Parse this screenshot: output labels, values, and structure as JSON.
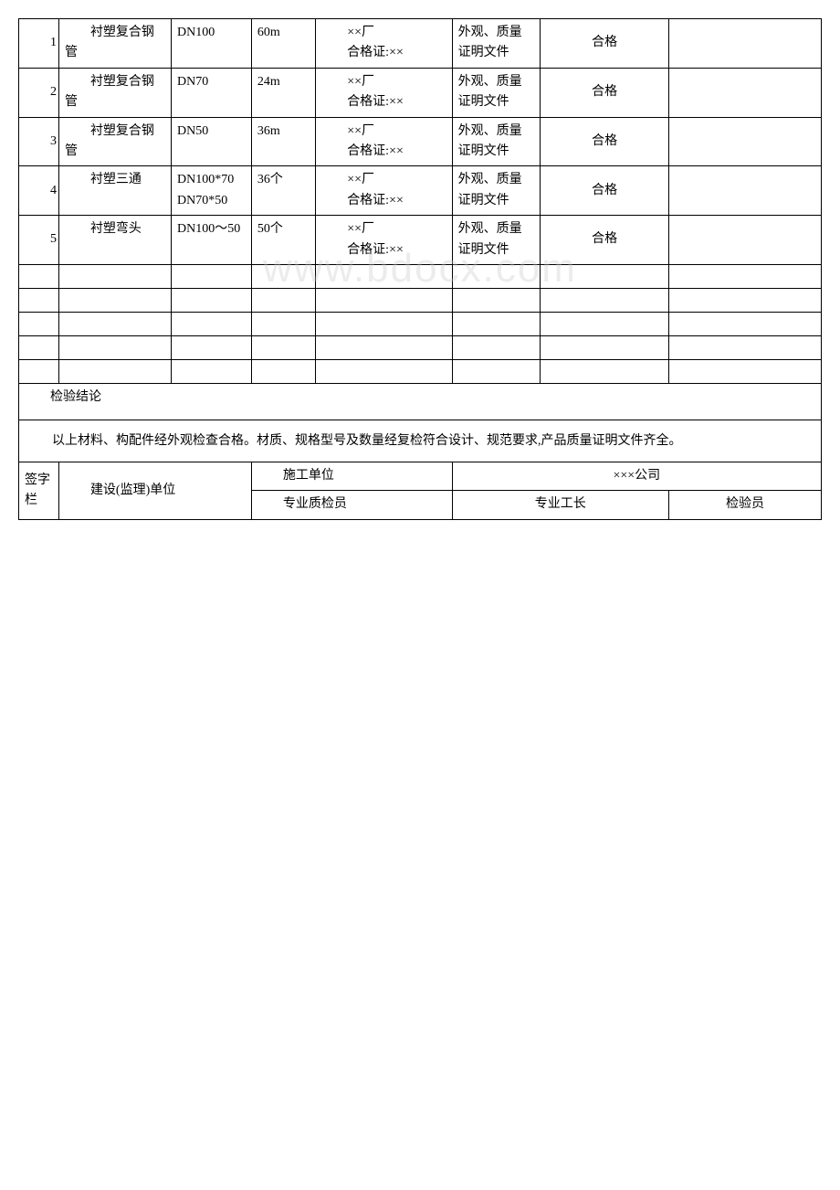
{
  "rows": [
    {
      "num": "1",
      "name": "衬塑复合钢管",
      "spec": "DN100",
      "qty": "60m",
      "mfg_line1": "××厂",
      "mfg_line2": "合格证:××",
      "check": "外观、质量证明文件",
      "result": "合格"
    },
    {
      "num": "2",
      "name": "衬塑复合钢管",
      "spec": "DN70",
      "qty": "24m",
      "mfg_line1": "××厂",
      "mfg_line2": "合格证:××",
      "check": "外观、质量证明文件",
      "result": "合格"
    },
    {
      "num": "3",
      "name": "衬塑复合钢管",
      "spec": "DN50",
      "qty": "36m",
      "mfg_line1": "××厂",
      "mfg_line2": "合格证:××",
      "check": "外观、质量证明文件",
      "result": "合格"
    },
    {
      "num": "4",
      "name": "衬塑三通",
      "spec": "DN100*70\nDN70*50",
      "qty": "36个",
      "mfg_line1": "××厂",
      "mfg_line2": "合格证:××",
      "check": "外观、质量证明文件",
      "result": "合格"
    },
    {
      "num": "5",
      "name": "衬塑弯头",
      "spec": "DN100～50",
      "qty": "50个",
      "mfg_line1": "××厂",
      "mfg_line2": "合格证:××",
      "check": "外观、质量证明文件",
      "result": "合格"
    }
  ],
  "conclusion_label": "检验结论",
  "conclusion_text": "以上材料、构配件经外观检查合格。材质、规格型号及数量经复检符合设计、规范要求,产品质量证明文件齐全。",
  "sig": {
    "col_label": "签字栏",
    "supervisor": "建设(监理)单位",
    "construction_unit_label": "施工单位",
    "construction_unit_value": "×××公司",
    "qc_label": "专业质检员",
    "foreman_label": "专业工长",
    "inspector_label": "检验员"
  },
  "style": {
    "background_color": "#ffffff",
    "border_color": "#000000",
    "font_family": "SimSun",
    "base_font_size": 14,
    "watermark_text": "www.bdocx.com",
    "watermark_color": "rgba(200,200,200,0.35)"
  }
}
